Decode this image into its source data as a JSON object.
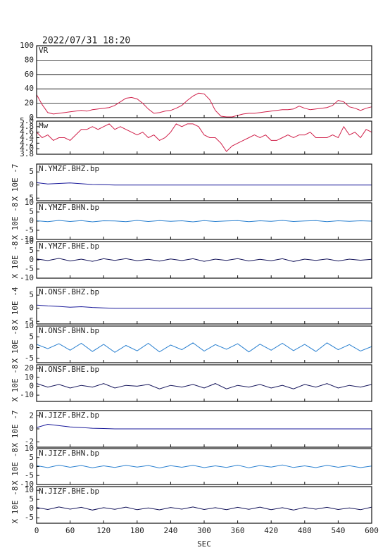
{
  "chart_data": [
    {
      "type": "line",
      "title": "2022/07/31 18:20",
      "grid": true,
      "xlim": [
        0,
        600
      ],
      "ylim": [
        0,
        100
      ],
      "yticks": [
        0,
        20,
        40,
        60,
        80,
        100
      ],
      "x": [
        0,
        10,
        20,
        30,
        40,
        50,
        60,
        70,
        80,
        90,
        100,
        110,
        120,
        130,
        140,
        150,
        160,
        170,
        180,
        190,
        200,
        210,
        220,
        230,
        240,
        250,
        260,
        270,
        280,
        290,
        300,
        310,
        320,
        330,
        340,
        350,
        360,
        370,
        380,
        390,
        400,
        410,
        420,
        430,
        440,
        450,
        460,
        470,
        480,
        490,
        500,
        510,
        520,
        530,
        540,
        550,
        560,
        570,
        580,
        590,
        600
      ],
      "series": [
        {
          "name": "VR",
          "color": "#d0204a",
          "values": [
            32,
            18,
            7,
            5,
            6,
            7,
            8,
            9,
            10,
            9,
            11,
            12,
            13,
            14,
            17,
            22,
            27,
            28,
            26,
            20,
            12,
            6,
            7,
            9,
            10,
            13,
            17,
            24,
            30,
            34,
            33,
            25,
            10,
            2,
            1,
            1,
            3,
            5,
            6,
            6,
            7,
            8,
            9,
            10,
            11,
            11,
            12,
            16,
            13,
            11,
            12,
            13,
            14,
            17,
            24,
            22,
            15,
            13,
            10,
            13,
            15
          ]
        }
      ]
    },
    {
      "type": "line",
      "xlim": [
        0,
        600
      ],
      "ylim": [
        3.8,
        5.0
      ],
      "yticks": [
        3.8,
        {
          "value": 4,
          "label": "4.0"
        },
        4.2,
        4.4,
        4.6,
        4.8,
        {
          "value": 5,
          "label": "5.0"
        }
      ],
      "x": [
        0,
        10,
        20,
        30,
        40,
        50,
        60,
        70,
        80,
        90,
        100,
        110,
        120,
        130,
        140,
        150,
        160,
        170,
        180,
        190,
        200,
        210,
        220,
        230,
        240,
        250,
        260,
        270,
        280,
        290,
        300,
        310,
        320,
        330,
        340,
        350,
        360,
        370,
        380,
        390,
        400,
        410,
        420,
        430,
        440,
        450,
        460,
        470,
        480,
        490,
        500,
        510,
        520,
        530,
        540,
        550,
        560,
        570,
        580,
        590,
        600
      ],
      "series": [
        {
          "name": "Mw",
          "color": "#d0204a",
          "values": [
            4.6,
            4.4,
            4.5,
            4.3,
            4.4,
            4.4,
            4.3,
            4.5,
            4.7,
            4.7,
            4.8,
            4.7,
            4.8,
            4.9,
            4.7,
            4.8,
            4.7,
            4.6,
            4.5,
            4.6,
            4.4,
            4.5,
            4.3,
            4.4,
            4.6,
            4.9,
            4.8,
            4.9,
            4.9,
            4.8,
            4.5,
            4.4,
            4.4,
            4.2,
            3.9,
            4.1,
            4.2,
            4.3,
            4.4,
            4.5,
            4.4,
            4.5,
            4.3,
            4.3,
            4.4,
            4.5,
            4.4,
            4.5,
            4.5,
            4.6,
            4.4,
            4.4,
            4.4,
            4.5,
            4.4,
            4.8,
            4.5,
            4.6,
            4.4,
            4.7,
            4.6
          ]
        }
      ]
    },
    {
      "type": "line",
      "ylabel": "X 10E -7",
      "xlim": [
        0,
        600
      ],
      "ylim": [
        -6,
        8
      ],
      "yticks": [
        -5,
        0,
        5
      ],
      "x": [
        0,
        20,
        40,
        60,
        80,
        100,
        120,
        140,
        160,
        180,
        200,
        220,
        240,
        260,
        280,
        300,
        320,
        340,
        360,
        380,
        400,
        420,
        440,
        460,
        480,
        500,
        520,
        540,
        560,
        580,
        600
      ],
      "series": [
        {
          "name": "N.YMZF.BHZ.bp",
          "color": "#1a1a9a",
          "values": [
            0.9,
            0.4,
            0.6,
            0.8,
            0.5,
            0.2,
            0.1,
            0,
            0,
            0,
            0,
            0,
            0,
            0,
            0,
            0,
            0,
            0,
            0,
            0,
            0,
            0,
            0,
            0,
            0,
            0,
            0,
            0,
            0,
            0,
            0
          ]
        }
      ]
    },
    {
      "type": "line",
      "ylabel": "X 10E -8",
      "xlim": [
        0,
        600
      ],
      "ylim": [
        -10,
        10
      ],
      "yticks": [
        -10,
        -5,
        0,
        5,
        10
      ],
      "x": [
        0,
        20,
        40,
        60,
        80,
        100,
        120,
        140,
        160,
        180,
        200,
        220,
        240,
        260,
        280,
        300,
        320,
        340,
        360,
        380,
        400,
        420,
        440,
        460,
        480,
        500,
        520,
        540,
        560,
        580,
        600
      ],
      "series": [
        {
          "name": "N.YMZF.BHN.bp",
          "color": "#2a80d0",
          "values": [
            0.2,
            -0.3,
            0.4,
            -0.2,
            0.3,
            -0.4,
            0.2,
            0.1,
            -0.3,
            0.4,
            -0.2,
            0.3,
            -0.1,
            0.2,
            -0.4,
            0.3,
            -0.2,
            0.1,
            0.3,
            -0.3,
            0.2,
            -0.1,
            0.4,
            -0.2,
            0.1,
            0.3,
            -0.3,
            0.2,
            -0.1,
            0.2,
            0
          ]
        }
      ]
    },
    {
      "type": "line",
      "ylabel": "X 10E -8",
      "xlim": [
        0,
        600
      ],
      "ylim": [
        -10,
        10
      ],
      "yticks": [
        -10,
        -5,
        0,
        5,
        10
      ],
      "x": [
        0,
        20,
        40,
        60,
        80,
        100,
        120,
        140,
        160,
        180,
        200,
        220,
        240,
        260,
        280,
        300,
        320,
        340,
        360,
        380,
        400,
        420,
        440,
        460,
        480,
        500,
        520,
        540,
        560,
        580,
        600
      ],
      "series": [
        {
          "name": "N.YMZF.BHE.bp",
          "color": "#14145a",
          "values": [
            0.5,
            -0.4,
            0.8,
            -0.6,
            0.4,
            -0.8,
            0.6,
            -0.3,
            0.7,
            -0.5,
            0.3,
            -0.7,
            0.5,
            -0.4,
            0.6,
            -0.8,
            0.4,
            -0.3,
            0.7,
            -0.6,
            0.3,
            -0.5,
            0.6,
            -0.9,
            0.4,
            -0.3,
            0.5,
            -0.6,
            0.4,
            -0.2,
            0.3
          ]
        }
      ]
    },
    {
      "type": "line",
      "ylabel": "X 10E -4",
      "xlim": [
        0,
        600
      ],
      "ylim": [
        -6,
        8
      ],
      "yticks": [
        -5,
        0,
        5
      ],
      "x": [
        0,
        20,
        40,
        60,
        80,
        100,
        120,
        140,
        160,
        180,
        200,
        220,
        240,
        260,
        280,
        300,
        320,
        340,
        360,
        380,
        400,
        420,
        440,
        460,
        480,
        500,
        520,
        540,
        560,
        580,
        600
      ],
      "series": [
        {
          "name": "N.ONSF.BHZ.bp",
          "color": "#1a1a9a",
          "values": [
            1.2,
            0.9,
            0.7,
            0.4,
            0.6,
            0.3,
            0.1,
            0,
            0,
            0,
            0,
            0,
            0,
            0,
            0,
            0,
            0,
            0,
            0,
            0,
            0,
            0,
            0,
            0,
            0,
            0,
            0,
            0,
            0,
            0,
            0
          ]
        }
      ]
    },
    {
      "type": "line",
      "ylabel": "X 10E -8",
      "xlim": [
        0,
        600
      ],
      "ylim": [
        -7,
        10
      ],
      "yticks": [
        -5,
        0,
        5,
        10
      ],
      "x": [
        0,
        20,
        40,
        60,
        80,
        100,
        120,
        140,
        160,
        180,
        200,
        220,
        240,
        260,
        280,
        300,
        320,
        340,
        360,
        380,
        400,
        420,
        440,
        460,
        480,
        500,
        520,
        540,
        560,
        580,
        600
      ],
      "series": [
        {
          "name": "N.ONSF.BHN.bp",
          "color": "#2a80d0",
          "values": [
            1.5,
            -0.5,
            1.8,
            -1.2,
            2.0,
            -1.8,
            1.5,
            -2.2,
            1.0,
            -1.5,
            2.0,
            -2.0,
            1.2,
            -1.0,
            2.2,
            -1.6,
            1.4,
            -0.8,
            1.8,
            -2.0,
            1.6,
            -1.2,
            2.0,
            -1.4,
            1.5,
            -1.8,
            2.2,
            -1.0,
            1.4,
            -1.6,
            0.5
          ]
        }
      ]
    },
    {
      "type": "line",
      "ylabel": "X 10E -8",
      "xlim": [
        0,
        600
      ],
      "ylim": [
        -17,
        24
      ],
      "yticks": [
        -10,
        0,
        10,
        20
      ],
      "x": [
        0,
        20,
        40,
        60,
        80,
        100,
        120,
        140,
        160,
        180,
        200,
        220,
        240,
        260,
        280,
        300,
        320,
        340,
        360,
        380,
        400,
        420,
        440,
        460,
        480,
        500,
        520,
        540,
        560,
        580,
        600
      ],
      "series": [
        {
          "name": "N.ONSF.BHE.bp",
          "color": "#14145a",
          "values": [
            3,
            -1,
            2,
            -2,
            1,
            -1,
            3,
            -2,
            1,
            0,
            2,
            -3,
            1,
            -1,
            2,
            -2,
            3,
            -3,
            1,
            -1,
            2,
            -2,
            1,
            -3,
            2,
            -1,
            3,
            -2,
            1,
            -1,
            2
          ]
        }
      ]
    },
    {
      "type": "line",
      "ylabel": "X 10E -7",
      "xlim": [
        0,
        600
      ],
      "ylim": [
        -2.8,
        2.8
      ],
      "yticks": [
        -2,
        0,
        2
      ],
      "x": [
        0,
        20,
        40,
        60,
        80,
        100,
        120,
        140,
        160,
        180,
        200,
        220,
        240,
        260,
        280,
        300,
        320,
        340,
        360,
        380,
        400,
        420,
        440,
        460,
        480,
        500,
        520,
        540,
        560,
        580,
        600
      ],
      "series": [
        {
          "name": "N.JIZF.BHZ.bp",
          "color": "#1a1a9a",
          "values": [
            0.2,
            0.7,
            0.5,
            0.3,
            0.2,
            0.1,
            0.05,
            0,
            0,
            0,
            0,
            0,
            0,
            0,
            0,
            0,
            0,
            0,
            0,
            0,
            0,
            0,
            0,
            0,
            0,
            0,
            0,
            0,
            0,
            0,
            0
          ]
        }
      ]
    },
    {
      "type": "line",
      "ylabel": "X 10E -8",
      "xlim": [
        0,
        600
      ],
      "ylim": [
        -10,
        10
      ],
      "yticks": [
        -10,
        -5,
        0,
        5,
        10
      ],
      "x": [
        0,
        20,
        40,
        60,
        80,
        100,
        120,
        140,
        160,
        180,
        200,
        220,
        240,
        260,
        280,
        300,
        320,
        340,
        360,
        380,
        400,
        420,
        440,
        460,
        480,
        500,
        520,
        540,
        560,
        580,
        600
      ],
      "series": [
        {
          "name": "N.JIZF.BHN.bp",
          "color": "#2a80d0",
          "values": [
            0.5,
            -0.6,
            0.8,
            -0.4,
            0.6,
            -0.7,
            0.4,
            -0.5,
            0.7,
            -0.3,
            0.6,
            -0.8,
            0.5,
            -0.4,
            0.7,
            -0.6,
            0.4,
            -0.5,
            0.8,
            -0.7,
            0.6,
            -0.3,
            0.9,
            -0.5,
            0.4,
            -0.6,
            0.7,
            -0.4,
            0.5,
            -0.6,
            0.3
          ]
        }
      ]
    },
    {
      "type": "line",
      "ylabel": "X 10E -8",
      "xlabel": "SEC",
      "xlim": [
        0,
        600
      ],
      "ylim": [
        -8,
        12
      ],
      "yticks": [
        -5,
        0,
        5,
        10
      ],
      "xticks": [
        0,
        60,
        120,
        180,
        240,
        300,
        360,
        420,
        480,
        540,
        600
      ],
      "x": [
        0,
        20,
        40,
        60,
        80,
        100,
        120,
        140,
        160,
        180,
        200,
        220,
        240,
        260,
        280,
        300,
        320,
        340,
        360,
        380,
        400,
        420,
        440,
        460,
        480,
        500,
        520,
        540,
        560,
        580,
        600
      ],
      "series": [
        {
          "name": "N.JIZF.BHE.bp",
          "color": "#14145a",
          "values": [
            0.6,
            -0.5,
            0.9,
            -0.3,
            0.7,
            -0.8,
            0.5,
            -0.4,
            0.8,
            -0.6,
            0.4,
            -0.7,
            0.6,
            -0.3,
            0.9,
            -0.5,
            0.5,
            -0.6,
            0.7,
            -0.4,
            0.8,
            -0.6,
            0.5,
            -0.8,
            0.6,
            -0.3,
            0.7,
            -0.5,
            0.4,
            -0.6,
            0.8
          ]
        }
      ]
    }
  ]
}
